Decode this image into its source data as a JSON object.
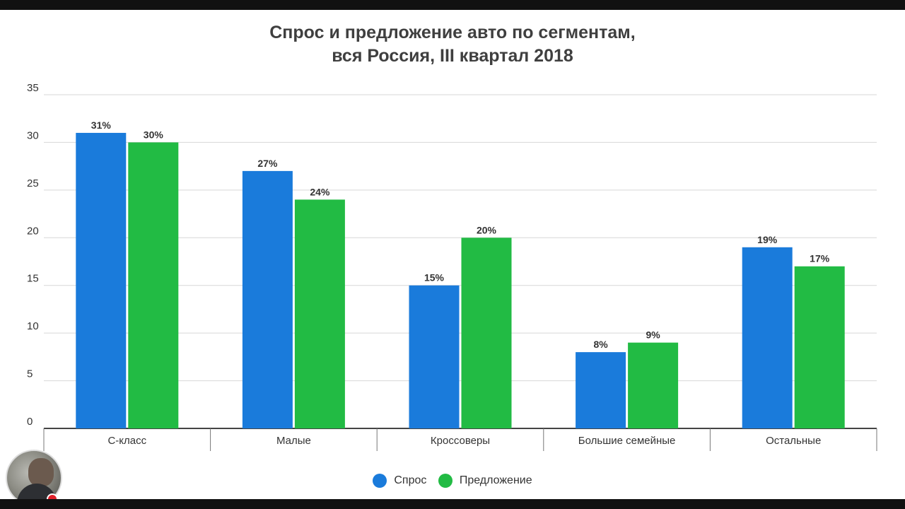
{
  "chart_data": {
    "type": "bar",
    "title_lines": [
      "Спрос и предложение авто по сегментам,",
      "вся Россия, III квартал 2018"
    ],
    "categories": [
      "С-класс",
      "Малые",
      "Кроссоверы",
      "Большие семейные",
      "Остальные"
    ],
    "series": [
      {
        "name": "Спрос",
        "color": "#1a7bdb",
        "values": [
          31,
          27,
          15,
          8,
          19
        ],
        "labels": [
          "31%",
          "27%",
          "15%",
          "8%",
          "19%"
        ]
      },
      {
        "name": "Предложение",
        "color": "#22bb44",
        "values": [
          30,
          24,
          20,
          9,
          17
        ],
        "labels": [
          "30%",
          "24%",
          "20%",
          "9%",
          "17%"
        ]
      }
    ],
    "ylim": [
      0,
      35
    ],
    "yticks": [
      "0",
      "5",
      "10",
      "15",
      "20",
      "25",
      "30",
      "35"
    ],
    "grid": true,
    "legend_position": "bottom"
  }
}
